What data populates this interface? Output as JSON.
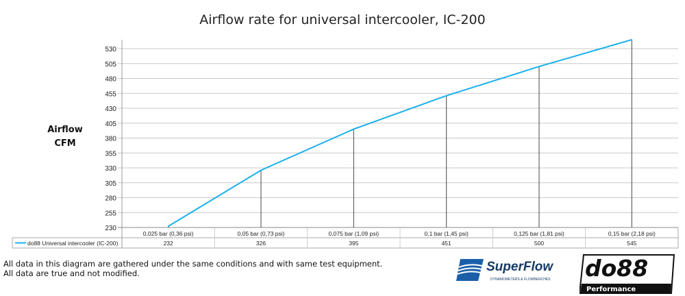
{
  "chart_data": {
    "type": "line",
    "title": "Airflow rate for universal intercooler, IC-200",
    "ylabel": [
      "Airflow",
      "CFM"
    ],
    "xlabel": "",
    "categories": [
      "0,025 bar (0,36 psi)",
      "0,05 bar (0,73 psi)",
      "0,075 bar (1,09 psi)",
      "0,1 bar (1,45 psi)",
      "0,125 bar (1,81 psi)",
      "0,15 bar (2,18 psi)"
    ],
    "series": [
      {
        "name": "do88 Universal intercooler (IC-200)",
        "values": [
          232,
          326,
          395,
          451,
          500,
          545
        ],
        "color": "#1ab0ec"
      }
    ],
    "yticks": [
      230,
      255,
      280,
      305,
      330,
      355,
      380,
      405,
      430,
      455,
      480,
      505,
      530
    ],
    "ylim": [
      230,
      545
    ],
    "grid": true,
    "legend": "data-table"
  },
  "notes": [
    "All data in this diagram are gathered under the same conditions and with same test equipment.",
    "All data are true and not modified."
  ],
  "logos": {
    "superflow": {
      "name": "SuperFlow",
      "tagline": "DYNAMOMETERS & FLOWBENCHES"
    },
    "do88": {
      "name": "do88",
      "tagline": "Performance"
    }
  }
}
